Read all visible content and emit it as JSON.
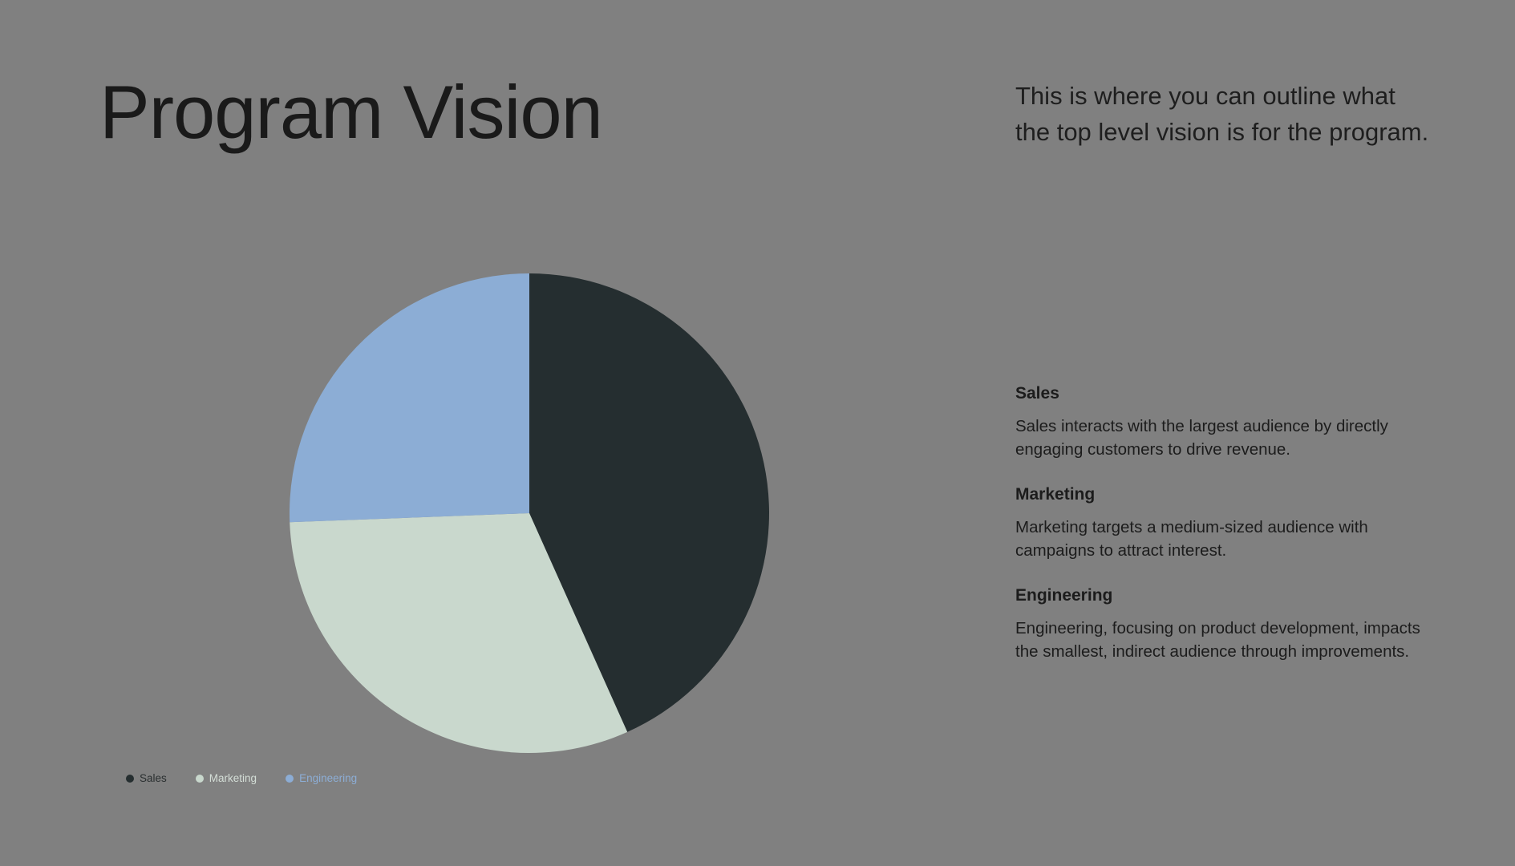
{
  "title": "Program Vision",
  "intro": "This is where you can outline what the top level vision is for the program.",
  "sections": [
    {
      "heading": "Sales",
      "body": "Sales interacts with the largest audience by directly engaging customers to drive revenue."
    },
    {
      "heading": "Marketing",
      "body": "Marketing targets a medium-sized audience with campaigns to attract interest."
    },
    {
      "heading": "Engineering",
      "body": "Engineering, focusing on product development, impacts the smallest, indirect audience through improvements."
    }
  ],
  "chart_data": {
    "type": "pie",
    "categories": [
      "Sales",
      "Marketing",
      "Engineering"
    ],
    "values": [
      43.3,
      31.1,
      25.6
    ],
    "colors": [
      "#252e30",
      "#c9d8cd",
      "#8cadd5"
    ],
    "legend_text_colors": [
      "#2a2f30",
      "#d4ded7",
      "#8cadd5"
    ],
    "start_angle": "top, clockwise",
    "legend_position": "bottom-left"
  }
}
